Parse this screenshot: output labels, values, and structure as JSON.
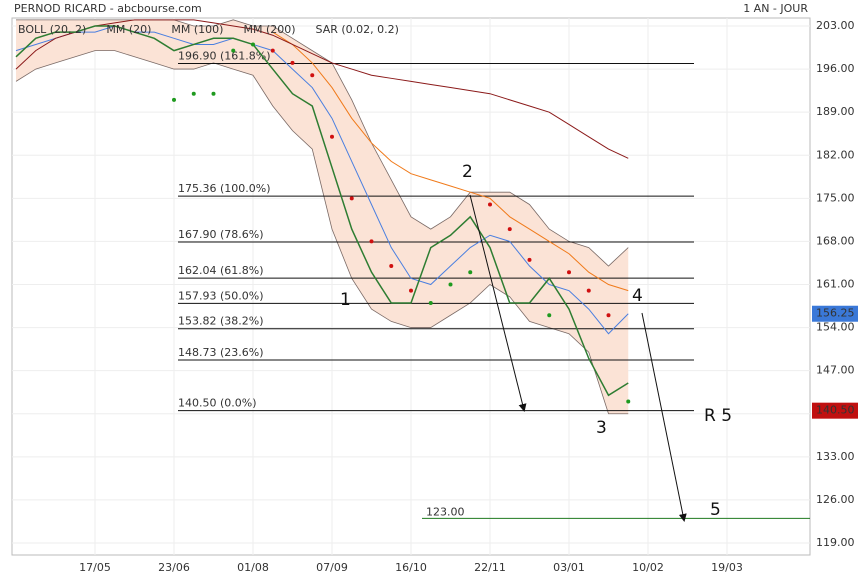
{
  "header": {
    "title": "PERNOD RICARD - abcbourse.com",
    "period": "1 AN - JOUR"
  },
  "chart_data": {
    "type": "line",
    "categories": [
      null,
      null,
      null,
      null,
      "17/05",
      null,
      null,
      null,
      "23/06",
      null,
      null,
      null,
      "01/08",
      null,
      null,
      null,
      "07/09",
      null,
      null,
      null,
      "16/10",
      null,
      null,
      null,
      "22/11",
      null,
      null,
      null,
      "03/01",
      null,
      null,
      null,
      "10/02",
      null,
      null,
      null,
      "19/03",
      null,
      null,
      null,
      null
    ],
    "ylim": [
      117.05,
      204.3
    ],
    "yticks": [
      {
        "value": 119,
        "label": "119.00"
      },
      {
        "value": 126,
        "label": "126.00"
      },
      {
        "value": 133,
        "label": "133.00"
      },
      {
        "value": 140,
        "label": "140.00"
      },
      {
        "value": 147,
        "label": "147.00"
      },
      {
        "value": 154,
        "label": "154.00"
      },
      {
        "value": 161,
        "label": "161.00"
      },
      {
        "value": 168,
        "label": "168.00"
      },
      {
        "value": 175,
        "label": "175.00"
      },
      {
        "value": 182,
        "label": "182.00"
      },
      {
        "value": 189,
        "label": "189.00"
      },
      {
        "value": 196,
        "label": "196.00"
      },
      {
        "value": 203,
        "label": "203.00"
      }
    ],
    "grid": true,
    "price": {
      "color": "#2e7d32",
      "values": [
        198,
        201,
        202,
        202,
        203,
        203,
        202,
        201,
        199,
        200,
        201,
        201,
        200,
        196,
        192,
        190,
        180,
        170,
        163,
        158,
        158,
        167,
        169,
        172,
        167,
        158,
        158,
        162,
        157,
        149,
        143,
        145,
        null,
        null,
        null,
        null,
        null,
        null,
        null,
        null,
        null
      ]
    },
    "bands": {
      "name": "BOLL (20, 2)",
      "color": "#7a6a66",
      "fill": "#fbe3d6",
      "upper": [
        204,
        204,
        204,
        204,
        204,
        204,
        204,
        204,
        204,
        203,
        203,
        204,
        203,
        203,
        201,
        199,
        197,
        191,
        184,
        178,
        172,
        170,
        172,
        176,
        176,
        176,
        174,
        170,
        168,
        167,
        164,
        167,
        null,
        null,
        null,
        null,
        null,
        null,
        null,
        null,
        null
      ],
      "lower": [
        194,
        196,
        197,
        198,
        199,
        199,
        198,
        197,
        196,
        196,
        197,
        196,
        195,
        190,
        186,
        183,
        170,
        162,
        157,
        155,
        154,
        154,
        156,
        158,
        161,
        159,
        155,
        154,
        153,
        150,
        140,
        140,
        null,
        null,
        null,
        null,
        null,
        null,
        null,
        null,
        null
      ]
    },
    "series": [
      {
        "name": "MM (20)",
        "color": "#4a7fe0",
        "values": [
          199,
          200,
          201,
          202,
          202,
          203,
          202,
          202,
          201,
          200,
          200,
          201,
          200,
          199,
          196,
          193,
          188,
          181,
          174,
          167,
          162,
          161,
          164,
          167,
          169,
          168,
          164,
          161,
          160,
          157,
          153,
          156.25,
          null,
          null,
          null,
          null,
          null,
          null,
          null,
          null,
          null
        ]
      },
      {
        "name": "MM (100)",
        "color": "#f07a1a",
        "values": [
          null,
          null,
          null,
          null,
          null,
          null,
          null,
          null,
          null,
          null,
          null,
          null,
          null,
          202,
          200,
          197,
          193,
          188,
          184,
          181,
          179,
          178,
          177,
          176,
          175,
          172,
          170,
          168,
          166,
          163,
          161,
          160,
          null,
          null,
          null,
          null,
          null,
          null,
          null,
          null,
          null
        ]
      },
      {
        "name": "MM (200)",
        "color": "#8b1a1a",
        "values": [
          196,
          199,
          201,
          202,
          203,
          203.5,
          204,
          204,
          204,
          204,
          203.5,
          203,
          202.5,
          201.5,
          200,
          198.5,
          197,
          196,
          195,
          194.5,
          194,
          193.5,
          193,
          192.5,
          192,
          191,
          190,
          189,
          187,
          185,
          183,
          181.5,
          null,
          null,
          null,
          null,
          null,
          null,
          null,
          null,
          null
        ]
      }
    ],
    "sar": {
      "name": "SAR (0.02, 0.2)",
      "color": "#d01010",
      "below_color": "#1f9a1f",
      "values": [
        null,
        null,
        null,
        null,
        null,
        null,
        null,
        null,
        191,
        192,
        192,
        199,
        200,
        199,
        197,
        195,
        185,
        175,
        168,
        164,
        160,
        158,
        161,
        163,
        174,
        170,
        165,
        156,
        163,
        160,
        156,
        142,
        null,
        null,
        null,
        null,
        null,
        null,
        null,
        null,
        null
      ]
    },
    "levels": [
      {
        "value": 196.9,
        "label": "196.90  (161.8%)"
      },
      {
        "value": 175.36,
        "label": "175.36  (100.0%)"
      },
      {
        "value": 167.9,
        "label": "167.90  (78.6%)"
      },
      {
        "value": 162.04,
        "label": "162.04  (61.8%)"
      },
      {
        "value": 157.93,
        "label": "157.93  (50.0%)"
      },
      {
        "value": 153.82,
        "label": "153.82  (38.2%)"
      },
      {
        "value": 148.73,
        "label": "148.73  (23.6%)"
      },
      {
        "value": 140.5,
        "label": "140.50  (0.0%)"
      }
    ],
    "target": {
      "value": 123,
      "label": "123.00",
      "color": "#1f7a1f"
    },
    "price_tags": [
      {
        "value": 156.25,
        "label": "156.25",
        "color": "#3a78d8"
      },
      {
        "value": 140.5,
        "label": "140.50",
        "color": "#c01010"
      }
    ],
    "wave_labels": [
      "1",
      "2",
      "3",
      "4",
      "R 5",
      "5"
    ]
  }
}
